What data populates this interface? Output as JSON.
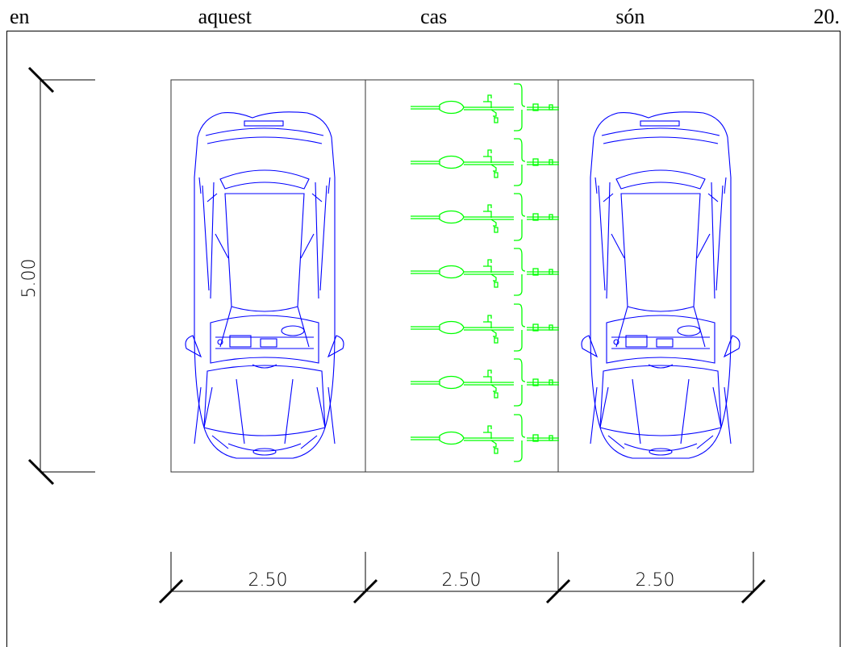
{
  "text_line": {
    "words": [
      "en",
      "aquest",
      "cas",
      "són",
      "20."
    ]
  },
  "dimensions": {
    "height": "5.00",
    "widths": [
      "2.50",
      "2.50",
      "2.50"
    ]
  },
  "colors": {
    "car": "#0000ff",
    "bike": "#00ff00",
    "line": "#000000"
  },
  "bicycle_count": 7
}
